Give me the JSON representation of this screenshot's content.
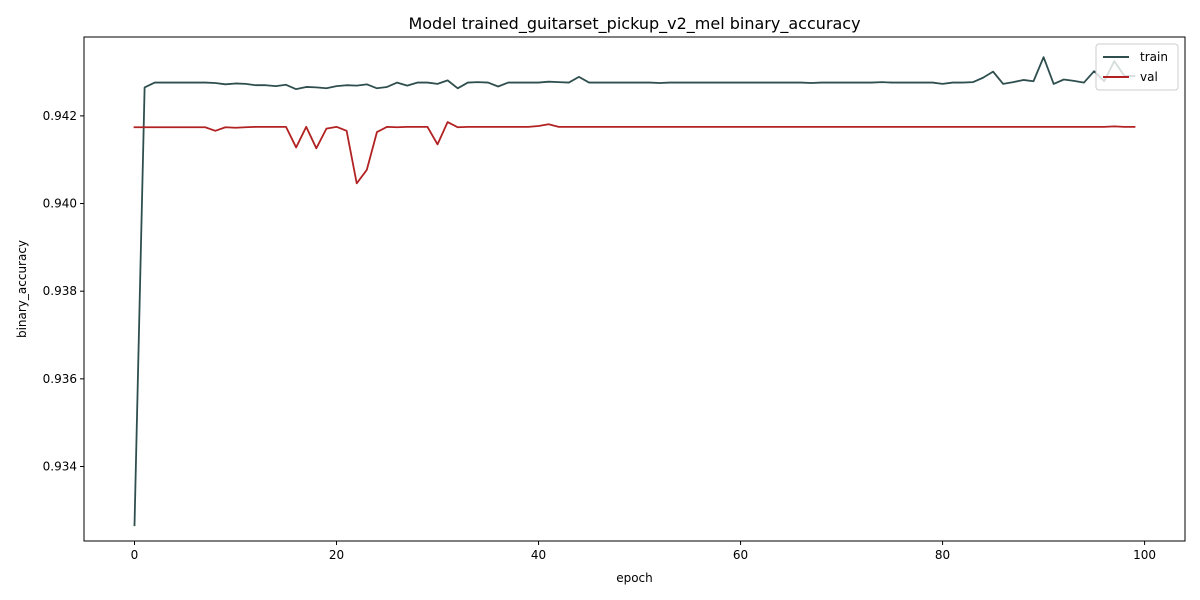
{
  "chart_data": {
    "type": "line",
    "title": "Model trained_guitarset_pickup_v2_mel binary_accuracy",
    "xlabel": "epoch",
    "ylabel": "binary_accuracy",
    "xlim": [
      -5,
      104
    ],
    "ylim": [
      0.9323,
      0.9438
    ],
    "xticks": [
      0,
      20,
      40,
      60,
      80,
      100
    ],
    "yticks": [
      0.934,
      0.936,
      0.938,
      0.94,
      0.942
    ],
    "ytick_labels": [
      "0.934",
      "0.936",
      "0.938",
      "0.940",
      "0.942"
    ],
    "grid": false,
    "legend_position": "top-right",
    "series": [
      {
        "name": "train",
        "color": "#2f4f4f",
        "values": [
          0.93266,
          0.94265,
          0.94276,
          0.94276,
          0.94276,
          0.94276,
          0.94276,
          0.94276,
          0.94275,
          0.94272,
          0.94274,
          0.94273,
          0.9427,
          0.9427,
          0.94268,
          0.94271,
          0.94261,
          0.94266,
          0.94265,
          0.94263,
          0.94268,
          0.9427,
          0.94269,
          0.94272,
          0.94263,
          0.94266,
          0.94276,
          0.94269,
          0.94276,
          0.94276,
          0.94273,
          0.94281,
          0.94263,
          0.94276,
          0.94277,
          0.94276,
          0.94267,
          0.94276,
          0.94276,
          0.94276,
          0.94276,
          0.94278,
          0.94277,
          0.94276,
          0.94289,
          0.94276,
          0.94276,
          0.94276,
          0.94276,
          0.94276,
          0.94276,
          0.94276,
          0.94275,
          0.94276,
          0.94276,
          0.94276,
          0.94276,
          0.94276,
          0.94276,
          0.94276,
          0.94276,
          0.94276,
          0.94276,
          0.94276,
          0.94276,
          0.94276,
          0.94276,
          0.94275,
          0.94276,
          0.94276,
          0.94276,
          0.94276,
          0.94276,
          0.94276,
          0.94277,
          0.94276,
          0.94276,
          0.94276,
          0.94276,
          0.94276,
          0.94273,
          0.94276,
          0.94276,
          0.94277,
          0.94287,
          0.94301,
          0.94273,
          0.94277,
          0.94282,
          0.94279,
          0.94334,
          0.94273,
          0.94283,
          0.9428,
          0.94276,
          0.94302,
          0.94279,
          0.94325,
          0.94291,
          0.94291
        ]
      },
      {
        "name": "val",
        "color": "#b22222",
        "values": [
          0.94174,
          0.94174,
          0.94174,
          0.94174,
          0.94174,
          0.94174,
          0.94174,
          0.94174,
          0.94166,
          0.94174,
          0.94173,
          0.94174,
          0.94175,
          0.94175,
          0.94175,
          0.94175,
          0.94128,
          0.94175,
          0.94126,
          0.94171,
          0.94175,
          0.94166,
          0.94046,
          0.94077,
          0.94163,
          0.94175,
          0.94174,
          0.94175,
          0.94175,
          0.94175,
          0.94135,
          0.94186,
          0.94174,
          0.94175,
          0.94175,
          0.94175,
          0.94175,
          0.94175,
          0.94175,
          0.94175,
          0.94177,
          0.94181,
          0.94175,
          0.94175,
          0.94175,
          0.94175,
          0.94175,
          0.94175,
          0.94175,
          0.94175,
          0.94175,
          0.94175,
          0.94175,
          0.94175,
          0.94175,
          0.94175,
          0.94175,
          0.94175,
          0.94175,
          0.94175,
          0.94175,
          0.94175,
          0.94175,
          0.94175,
          0.94175,
          0.94175,
          0.94175,
          0.94175,
          0.94175,
          0.94175,
          0.94175,
          0.94175,
          0.94175,
          0.94175,
          0.94175,
          0.94175,
          0.94175,
          0.94175,
          0.94175,
          0.94175,
          0.94175,
          0.94175,
          0.94175,
          0.94175,
          0.94175,
          0.94175,
          0.94175,
          0.94175,
          0.94175,
          0.94175,
          0.94175,
          0.94175,
          0.94175,
          0.94175,
          0.94175,
          0.94175,
          0.94175,
          0.94176,
          0.94175,
          0.94175
        ]
      }
    ]
  }
}
